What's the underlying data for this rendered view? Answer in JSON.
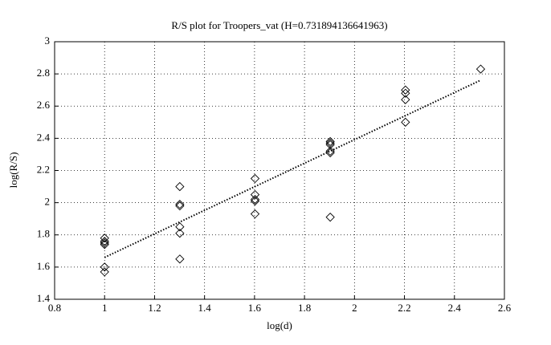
{
  "chart_data": {
    "type": "scatter",
    "title": "R/S plot for Troopers_vat (H=0.731894136641963)",
    "xlabel": "log(d)",
    "ylabel": "log(R/S)",
    "points": {
      "x": [
        1,
        1,
        1,
        1,
        1,
        1,
        1.301,
        1.301,
        1.301,
        1.301,
        1.301,
        1.301,
        1.602,
        1.602,
        1.602,
        1.602,
        1.602,
        1.903,
        1.903,
        1.903,
        1.903,
        1.903,
        1.903,
        2.204,
        2.204,
        2.204,
        2.204,
        2.505
      ],
      "y": [
        1.78,
        1.76,
        1.75,
        1.74,
        1.6,
        1.57,
        2.1,
        1.99,
        1.98,
        1.85,
        1.81,
        1.65,
        2.15,
        2.05,
        2.02,
        2.01,
        1.93,
        2.38,
        2.37,
        2.36,
        2.32,
        2.31,
        1.91,
        2.7,
        2.68,
        2.64,
        2.5,
        2.83
      ]
    },
    "fit_line": {
      "x": [
        1,
        2.505
      ],
      "y": [
        1.66,
        2.761
      ]
    },
    "xlim": [
      0.8,
      2.6
    ],
    "xticks": [
      0.8,
      1,
      1.2,
      1.4,
      1.6,
      1.8,
      2,
      2.2,
      2.4,
      2.6
    ],
    "ylim": [
      1.4,
      3
    ],
    "yticks": [
      1.4,
      1.6,
      1.8,
      2,
      2.2,
      2.4,
      2.6,
      2.8,
      3
    ],
    "grid": true,
    "color": "#000000"
  }
}
